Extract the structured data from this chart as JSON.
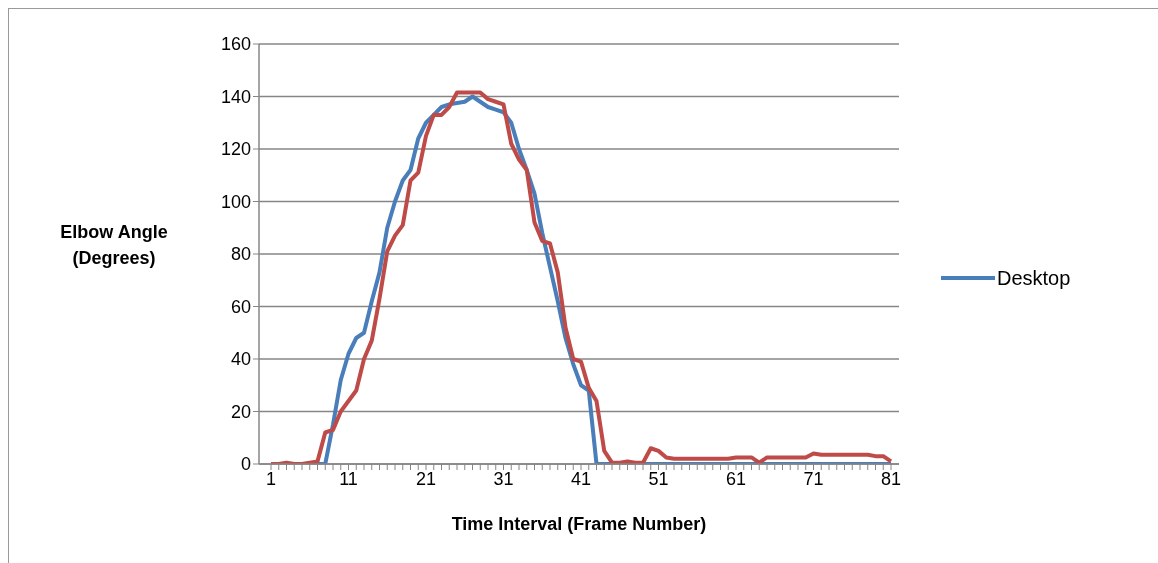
{
  "chart_data": {
    "type": "line",
    "xlabel": "Time Interval (Frame Number)",
    "ylabel": "Elbow Angle (Degrees)",
    "categories": [
      "1",
      null,
      null,
      null,
      null,
      null,
      null,
      null,
      null,
      null,
      "11",
      null,
      null,
      null,
      null,
      null,
      null,
      null,
      null,
      null,
      "21",
      null,
      null,
      null,
      null,
      null,
      null,
      null,
      null,
      null,
      "31",
      null,
      null,
      null,
      null,
      null,
      null,
      null,
      null,
      null,
      "41",
      null,
      null,
      null,
      null,
      null,
      null,
      null,
      null,
      null,
      "51",
      null,
      null,
      null,
      null,
      null,
      null,
      null,
      null,
      null,
      "61",
      null,
      null,
      null,
      null,
      null,
      null,
      null,
      null,
      null,
      "71",
      null,
      null,
      null,
      null,
      null,
      null,
      null,
      null,
      null,
      "81"
    ],
    "series": [
      {
        "name": "Desktop",
        "color": "#4a7ebb",
        "values": [
          null,
          null,
          null,
          null,
          null,
          0,
          0,
          0,
          15,
          32,
          42,
          48,
          50,
          62,
          73,
          90,
          100,
          108,
          112,
          124,
          130,
          133,
          136,
          137,
          137.5,
          138,
          140,
          138,
          136,
          135,
          134,
          130,
          120,
          112,
          103,
          88,
          75,
          62,
          48,
          38,
          30,
          28,
          0,
          0,
          0,
          0,
          0,
          0,
          0,
          0,
          0,
          0,
          0,
          0,
          0,
          0,
          0,
          0,
          0,
          0,
          0,
          0,
          0,
          0,
          0,
          0,
          0,
          0,
          0,
          0,
          0,
          0,
          0,
          0,
          0,
          0,
          0,
          0,
          0,
          0,
          0
        ]
      },
      {
        "color": "#be4b48",
        "values": [
          0,
          0,
          0.5,
          0,
          0,
          0.5,
          1,
          12,
          13,
          20,
          24,
          28,
          40,
          47,
          63,
          81,
          87,
          91,
          108,
          111,
          125,
          133,
          133,
          136,
          141.5,
          141.5,
          141.5,
          141.5,
          139,
          138,
          137,
          122,
          116,
          112,
          92,
          85,
          84,
          73,
          52,
          40,
          39,
          29,
          24,
          5,
          0.5,
          0.5,
          1,
          0.5,
          0.5,
          6,
          5,
          2.5,
          2,
          2,
          2,
          2,
          2,
          2,
          2,
          2,
          2.5,
          2.5,
          2.5,
          0.5,
          2.5,
          2.5,
          2.5,
          2.5,
          2.5,
          2.5,
          4,
          3.5,
          3.5,
          3.5,
          3.5,
          3.5,
          3.5,
          3.5,
          3,
          3,
          1
        ]
      }
    ],
    "ylim": [
      0,
      160
    ],
    "yticks": [
      0,
      20,
      40,
      60,
      80,
      100,
      120,
      140,
      160
    ],
    "grid": "y",
    "legend": "right",
    "marker": "none",
    "line_style": "solid"
  }
}
